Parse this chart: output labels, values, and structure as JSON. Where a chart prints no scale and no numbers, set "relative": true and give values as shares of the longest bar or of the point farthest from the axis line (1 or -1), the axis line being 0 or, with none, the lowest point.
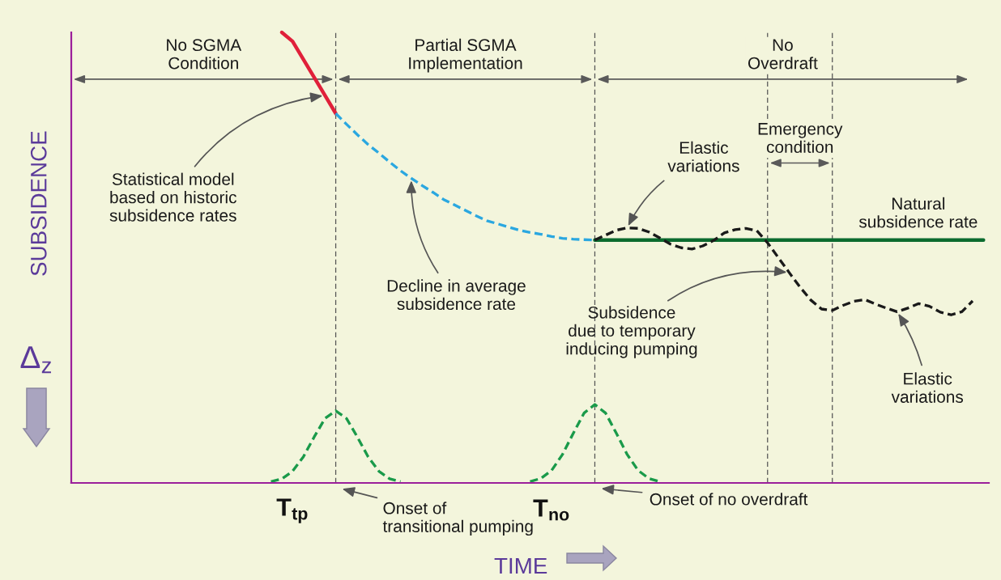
{
  "chart_data": {
    "type": "line",
    "relative": true,
    "xlabel": "TIME",
    "ylabel": "SUBSIDENCE",
    "grid": false,
    "categories": [
      null,
      null,
      null,
      null,
      null,
      null,
      null,
      null,
      null,
      null,
      null,
      null,
      null,
      null,
      null,
      null,
      null,
      null,
      null,
      null,
      "T$_{tp}$",
      null,
      null,
      null,
      null,
      null,
      null,
      null,
      null,
      null,
      null,
      null,
      null,
      null,
      null,
      null,
      null,
      null,
      null,
      null,
      null,
      null,
      null,
      null,
      "T$_{no}$",
      null,
      null,
      null,
      null,
      null,
      null,
      null,
      null,
      null,
      null,
      null,
      null,
      null,
      null,
      null,
      null,
      null,
      null,
      null,
      null,
      null,
      null,
      null,
      null,
      null,
      null,
      null,
      null,
      null,
      null,
      null,
      null,
      null,
      null,
      null,
      null,
      null,
      null,
      null,
      null
    ],
    "series": [
      {
        "color": "#e0203a",
        "line_style": "solid",
        "values": [
          null,
          null,
          null,
          null,
          null,
          null,
          null,
          null,
          null,
          null,
          null,
          null,
          null,
          null,
          null,
          null,
          null,
          null,
          null,
          1.0,
          0.98,
          0.94,
          0.9,
          0.86,
          0.82,
          null,
          null,
          null,
          null,
          null,
          null,
          null,
          null,
          null,
          null,
          null,
          null,
          null,
          null,
          null,
          null,
          null,
          null,
          null,
          null,
          null,
          null,
          null,
          null,
          null,
          null,
          null,
          null,
          null,
          null,
          null,
          null,
          null,
          null,
          null,
          null,
          null,
          null,
          null,
          null,
          null,
          null,
          null,
          null,
          null,
          null,
          null,
          null,
          null,
          null,
          null,
          null,
          null,
          null,
          null,
          null,
          null,
          null,
          null,
          null
        ]
      },
      {
        "color": "#2aa7e0",
        "line_style": "dashed",
        "values": [
          null,
          null,
          null,
          null,
          null,
          null,
          null,
          null,
          null,
          null,
          null,
          null,
          null,
          null,
          null,
          null,
          null,
          null,
          null,
          null,
          null,
          null,
          null,
          null,
          0.82,
          0.796,
          0.773,
          0.751,
          0.732,
          0.712,
          0.693,
          0.676,
          0.66,
          0.645,
          0.629,
          0.617,
          0.605,
          0.593,
          0.582,
          0.575,
          0.568,
          0.561,
          0.556,
          0.552,
          0.547,
          0.543,
          0.541,
          0.54,
          0.539,
          null,
          null,
          null,
          null,
          null,
          null,
          null,
          null,
          null,
          null,
          null,
          null,
          null,
          null,
          null,
          null,
          null,
          null,
          null,
          null,
          null,
          null,
          null,
          null,
          null,
          null,
          null,
          null,
          null,
          null,
          null,
          null,
          null,
          null,
          null,
          null
        ]
      },
      {
        "name": "Natural\nsubsidence rate",
        "color": "#0b6b2e",
        "line_style": "solid",
        "values": [
          null,
          null,
          null,
          null,
          null,
          null,
          null,
          null,
          null,
          null,
          null,
          null,
          null,
          null,
          null,
          null,
          null,
          null,
          null,
          null,
          null,
          null,
          null,
          null,
          null,
          null,
          null,
          null,
          null,
          null,
          null,
          null,
          null,
          null,
          null,
          null,
          null,
          null,
          null,
          null,
          null,
          null,
          null,
          null,
          null,
          null,
          null,
          null,
          0.539,
          0.539,
          0.539,
          0.539,
          0.539,
          0.539,
          0.539,
          0.539,
          0.539,
          0.539,
          0.539,
          0.539,
          0.539,
          0.539,
          0.539,
          0.539,
          0.539,
          0.539,
          0.539,
          0.539,
          0.539,
          0.539,
          0.539,
          0.539,
          0.539,
          0.539,
          0.539,
          0.539,
          0.539,
          0.539,
          0.539,
          0.539,
          0.539,
          0.539,
          0.539,
          0.539,
          0.539
        ]
      },
      {
        "color": "#1a1a1a",
        "line_style": "dashed",
        "values": [
          null,
          null,
          null,
          null,
          null,
          null,
          null,
          null,
          null,
          null,
          null,
          null,
          null,
          null,
          null,
          null,
          null,
          null,
          null,
          null,
          null,
          null,
          null,
          null,
          null,
          null,
          null,
          null,
          null,
          null,
          null,
          null,
          null,
          null,
          null,
          null,
          null,
          null,
          null,
          null,
          null,
          null,
          null,
          null,
          null,
          null,
          null,
          null,
          0.539,
          0.55,
          0.561,
          0.566,
          0.565,
          0.557,
          0.544,
          0.53,
          0.522,
          0.519,
          0.526,
          0.538,
          0.555,
          0.562,
          0.565,
          0.56,
          0.533,
          0.5,
          0.467,
          0.435,
          0.406,
          0.386,
          0.383,
          0.394,
          0.403,
          0.407,
          0.397,
          0.388,
          0.38,
          0.388,
          0.398,
          0.392,
          0.379,
          0.373,
          0.38,
          0.404,
          null
        ]
      },
      {
        "color": "#1a9a4a",
        "line_style": "dashed",
        "values": [
          null,
          null,
          null,
          null,
          null,
          null,
          null,
          null,
          null,
          null,
          null,
          null,
          null,
          null,
          null,
          null,
          null,
          null,
          0.003,
          0.009,
          0.026,
          0.058,
          0.102,
          0.143,
          0.16,
          0.143,
          0.102,
          0.058,
          0.026,
          0.009,
          0.003,
          null,
          null,
          null,
          null,
          null,
          null,
          null,
          null,
          null,
          null,
          null,
          null,
          null,
          null,
          null,
          null,
          null,
          null,
          null,
          null,
          null,
          null,
          null,
          null,
          null,
          null,
          null,
          null,
          null,
          null,
          null,
          null,
          null,
          null,
          null,
          null,
          null,
          null,
          null,
          null,
          null,
          null,
          null,
          null,
          null,
          null,
          null,
          null,
          null,
          null,
          null,
          null,
          null,
          null
        ]
      },
      {
        "color": "#1a9a4a",
        "line_style": "dashed",
        "values": [
          null,
          null,
          null,
          null,
          null,
          null,
          null,
          null,
          null,
          null,
          null,
          null,
          null,
          null,
          null,
          null,
          null,
          null,
          null,
          null,
          null,
          null,
          null,
          null,
          null,
          null,
          null,
          null,
          null,
          null,
          null,
          null,
          null,
          null,
          null,
          null,
          null,
          null,
          null,
          null,
          null,
          null,
          0.003,
          0.01,
          0.028,
          0.063,
          0.11,
          0.155,
          0.174,
          0.155,
          0.11,
          0.063,
          0.028,
          0.01,
          0.003,
          null,
          null,
          null,
          null,
          null,
          null,
          null,
          null,
          null,
          null,
          null,
          null,
          null,
          null,
          null,
          null,
          null,
          null,
          null,
          null,
          null,
          null,
          null,
          null,
          null,
          null,
          null,
          null,
          null,
          null
        ]
      }
    ],
    "annotations": [
      "No SGMA\nCondition",
      "Partial SGMA\nImplementation",
      "No\nOverdraft",
      "Emergency\ncondition",
      "Statistical model\nbased on historic\nsubsidence rates",
      "Decline in average\nsubsidence rate",
      "Elastic\nvariations",
      "Subsidence\ndue to temporary\ninducing pumping",
      "Elastic\nvariations",
      "Onset of\ntransitional pumping",
      "Onset of no overdraft",
      "Δ$_{z}$"
    ]
  }
}
